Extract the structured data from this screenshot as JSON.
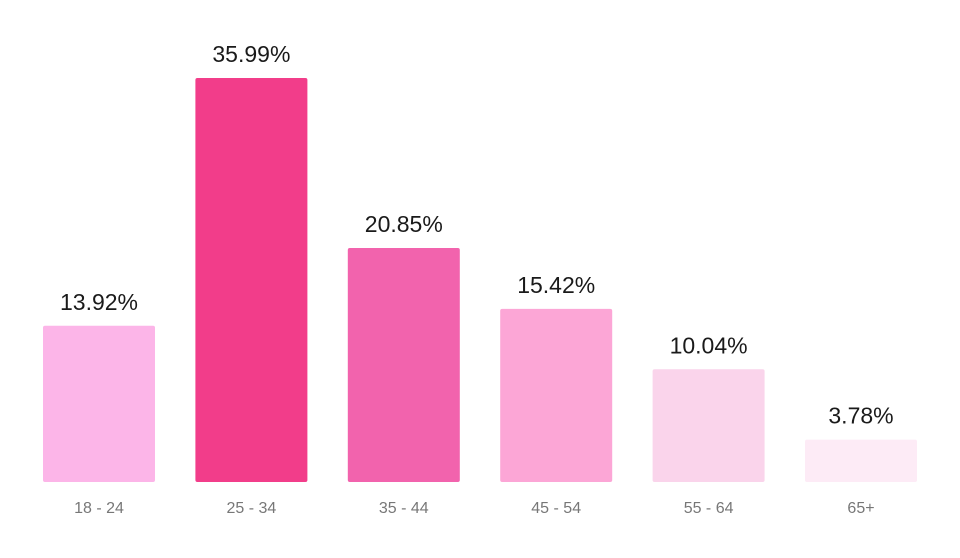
{
  "chart_data": {
    "type": "bar",
    "categories": [
      "18 - 24",
      "25 - 34",
      "35 - 44",
      "45 - 54",
      "55 - 64",
      "65+"
    ],
    "values": [
      13.92,
      35.99,
      20.85,
      15.42,
      10.04,
      3.78
    ],
    "value_labels": [
      "13.92%",
      "35.99%",
      "20.85%",
      "15.42%",
      "10.04%",
      "3.78%"
    ],
    "colors": [
      "#fcb5e8",
      "#f23d8a",
      "#f263ad",
      "#fca6d6",
      "#fad4eb",
      "#fdebf6"
    ]
  }
}
